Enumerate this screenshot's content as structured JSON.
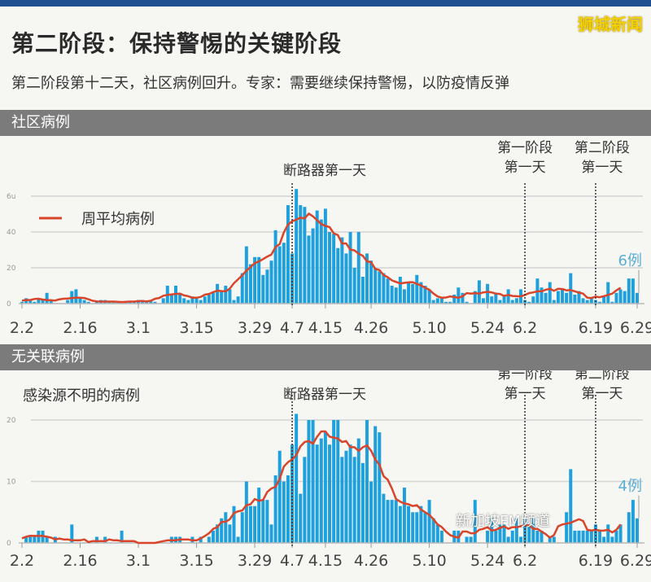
{
  "header": {
    "title": "第二阶段：保持警惕的关键阶段",
    "subtitle": "第二阶段第十二天，社区病例回升。专家：需要继续保持警惕，以防疫情反弹",
    "watermark_top": "狮城新闻",
    "watermark_bottom": "新加坡FM频道"
  },
  "colors": {
    "bar": "#1ea0dc",
    "line": "#d9452b",
    "topbar": "#1d4f91",
    "callout": "#5aaed6"
  },
  "chart_data": [
    {
      "type": "bar",
      "section_title": "社区病例",
      "legend": "周平均病例",
      "legend_placement": "top-left",
      "line_series": "7-day average",
      "ylim": [
        0,
        65
      ],
      "yticks": [
        0,
        20,
        40,
        60
      ],
      "ytick_labels": [
        "0",
        "20",
        "40",
        "6u"
      ],
      "x_start": "2.2",
      "x_end": "6.29",
      "xticks": [
        {
          "label": "2.2",
          "day": 0
        },
        {
          "label": "2.16",
          "day": 14
        },
        {
          "label": "3.1",
          "day": 28
        },
        {
          "label": "3.15",
          "day": 42
        },
        {
          "label": "3.29",
          "day": 56
        },
        {
          "label": "4.7",
          "day": 65
        },
        {
          "label": "4.15",
          "day": 73
        },
        {
          "label": "4.26",
          "day": 84
        },
        {
          "label": "5.10",
          "day": 98
        },
        {
          "label": "5.24",
          "day": 112
        },
        {
          "label": "6.2",
          "day": 121
        },
        {
          "label": "6.19",
          "day": 138
        },
        {
          "label": "6.29",
          "day": 148
        }
      ],
      "markers": [
        {
          "date": "4.7",
          "day": 65,
          "label": [
            "断路器第一天"
          ]
        },
        {
          "date": "6.2",
          "day": 121,
          "label": [
            "第一阶段",
            "第一天"
          ]
        },
        {
          "date": "6.19",
          "day": 138,
          "label": [
            "第二阶段",
            "第一天"
          ]
        }
      ],
      "callout": "6例",
      "values": [
        1,
        3,
        2,
        1,
        3,
        2,
        6,
        2,
        0,
        0,
        0,
        2,
        7,
        8,
        3,
        2,
        1,
        0,
        1,
        2,
        2,
        1,
        1,
        1,
        0,
        1,
        1,
        1,
        2,
        2,
        1,
        2,
        1,
        0,
        3,
        10,
        5,
        10,
        5,
        3,
        2,
        4,
        3,
        2,
        4,
        5,
        6,
        11,
        7,
        10,
        8,
        2,
        4,
        17,
        32,
        22,
        26,
        26,
        16,
        19,
        24,
        41,
        32,
        34,
        55,
        28,
        64,
        55,
        54,
        38,
        42,
        52,
        47,
        53,
        40,
        39,
        31,
        37,
        28,
        40,
        20,
        40,
        15,
        28,
        24,
        20,
        18,
        17,
        14,
        10,
        9,
        15,
        8,
        12,
        11,
        16,
        12,
        10,
        8,
        2,
        3,
        3,
        1,
        1,
        5,
        9,
        6,
        1,
        0,
        7,
        13,
        3,
        11,
        4,
        6,
        2,
        5,
        8,
        2,
        3,
        8,
        2,
        1,
        4,
        14,
        9,
        6,
        12,
        2,
        7,
        8,
        6,
        17,
        5,
        7,
        3,
        2,
        3,
        2,
        1,
        4,
        12,
        1,
        6,
        8,
        7,
        14,
        14,
        6
      ]
    },
    {
      "type": "bar",
      "section_title": "无关联病例",
      "label": "感染源不明的病例",
      "ylim": [
        0,
        21
      ],
      "yticks": [
        0,
        10,
        20
      ],
      "ytick_labels": [
        "0",
        "10",
        "20"
      ],
      "x_start": "2.2",
      "x_end": "6.29",
      "xticks": [
        {
          "label": "2.2",
          "day": 0
        },
        {
          "label": "2.16",
          "day": 14
        },
        {
          "label": "3.1",
          "day": 28
        },
        {
          "label": "3.15",
          "day": 42
        },
        {
          "label": "3.29",
          "day": 56
        },
        {
          "label": "4.7",
          "day": 65
        },
        {
          "label": "4.15",
          "day": 73
        },
        {
          "label": "4.26",
          "day": 84
        },
        {
          "label": "5.10",
          "day": 98
        },
        {
          "label": "5.24",
          "day": 112
        },
        {
          "label": "6.2",
          "day": 121
        },
        {
          "label": "6.19",
          "day": 138
        },
        {
          "label": "6.29",
          "day": 148
        }
      ],
      "markers": [
        {
          "date": "4.7",
          "day": 65,
          "label": [
            "断路器第一天"
          ]
        },
        {
          "date": "6.2",
          "day": 121,
          "label": [
            "第一阶段",
            "第一天"
          ]
        },
        {
          "date": "6.19",
          "day": 138,
          "label": [
            "第二阶段",
            "第一天"
          ]
        }
      ],
      "callout": "4例",
      "values": [
        0,
        1,
        1,
        1,
        2,
        2,
        1,
        0,
        1,
        0,
        0,
        0,
        3,
        0,
        0,
        0,
        0,
        0,
        1,
        0,
        1,
        0,
        0,
        0,
        2,
        0,
        0,
        0,
        0,
        0,
        0,
        0,
        0,
        0,
        0,
        0,
        1,
        1,
        1,
        0,
        0,
        1,
        0,
        1,
        0,
        1,
        2,
        3,
        4,
        5,
        3,
        6,
        1,
        5,
        10,
        6,
        6,
        9,
        7,
        7,
        3,
        11,
        15,
        10,
        11,
        16,
        21,
        8,
        14,
        20,
        20,
        16,
        17,
        18,
        16,
        20,
        20,
        14,
        15,
        16,
        14,
        17,
        13,
        20,
        10,
        19,
        18,
        8,
        7,
        7,
        7,
        6,
        9,
        6,
        5,
        5,
        6,
        5,
        7,
        4,
        3,
        2,
        0,
        0,
        2,
        2,
        0,
        1,
        1,
        7,
        0,
        0,
        2,
        4,
        2,
        3,
        3,
        1,
        2,
        4,
        1,
        4,
        3,
        4,
        2,
        2,
        0,
        1,
        1,
        0,
        0,
        5,
        12,
        2,
        2,
        2,
        2,
        2,
        3,
        2,
        1,
        3,
        1,
        2,
        3,
        0,
        5,
        7,
        4
      ]
    }
  ]
}
